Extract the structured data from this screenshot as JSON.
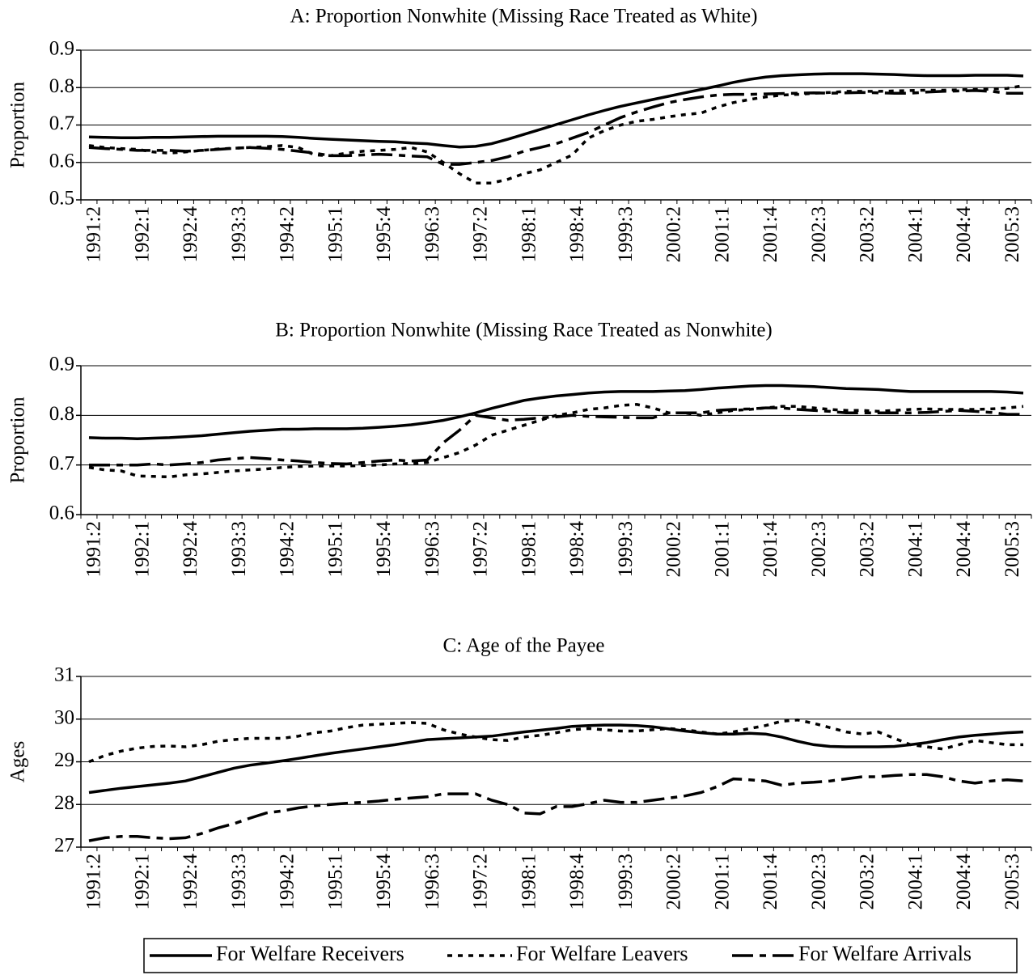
{
  "chart_data": [
    {
      "type": "line",
      "title": "A: Proportion Nonwhite (Missing Race Treated as White)",
      "y_label": "Proportion",
      "categories": [
        "1991:2",
        null,
        null,
        "1992:1",
        null,
        null,
        "1992:4",
        null,
        null,
        "1993:3",
        null,
        null,
        "1994:2",
        null,
        null,
        "1995:1",
        null,
        null,
        "1995:4",
        null,
        null,
        "1996:3",
        null,
        null,
        "1997:2",
        null,
        null,
        "1998:1",
        null,
        null,
        "1998:4",
        null,
        null,
        "1999:3",
        null,
        null,
        "2000:2",
        null,
        null,
        "2001:1",
        null,
        null,
        "2001:4",
        null,
        null,
        "2002:3",
        null,
        null,
        "2003:2",
        null,
        null,
        "2004:1",
        null,
        null,
        "2004:4",
        null,
        null,
        "2005:3",
        null
      ],
      "series": [
        {
          "name": "For Welfare Receivers",
          "color": "#000000",
          "values": [
            0.668,
            0.667,
            0.666,
            0.666,
            0.667,
            0.667,
            0.668,
            0.669,
            0.67,
            0.67,
            0.67,
            0.67,
            0.669,
            0.667,
            0.664,
            0.662,
            0.66,
            0.658,
            0.656,
            0.655,
            0.652,
            0.65,
            0.645,
            0.641,
            0.643,
            0.65,
            0.662,
            0.675,
            0.688,
            0.701,
            0.714,
            0.727,
            0.739,
            0.75,
            0.759,
            0.768,
            0.777,
            0.786,
            0.795,
            0.804,
            0.814,
            0.822,
            0.828,
            0.832,
            0.834,
            0.836,
            0.837,
            0.837,
            0.837,
            0.836,
            0.835,
            0.833,
            0.832,
            0.832,
            0.832,
            0.833,
            0.833,
            0.833,
            0.831
          ]
        },
        {
          "name": "For Welfare Leavers",
          "color": "#000000",
          "values": [
            0.645,
            0.64,
            0.637,
            0.635,
            0.628,
            0.625,
            0.628,
            0.632,
            0.636,
            0.638,
            0.64,
            0.642,
            0.645,
            0.64,
            0.62,
            0.618,
            0.625,
            0.63,
            0.632,
            0.635,
            0.64,
            0.628,
            0.6,
            0.57,
            0.545,
            0.545,
            0.555,
            0.57,
            0.58,
            0.6,
            0.62,
            0.665,
            0.685,
            0.7,
            0.71,
            0.715,
            0.722,
            0.728,
            0.732,
            0.748,
            0.76,
            0.768,
            0.775,
            0.78,
            0.782,
            0.785,
            0.787,
            0.79,
            0.79,
            0.79,
            0.791,
            0.792,
            0.793,
            0.793,
            0.794,
            0.795,
            0.796,
            0.798,
            0.805
          ]
        },
        {
          "name": "For Welfare Arrivals",
          "color": "#000000",
          "values": [
            0.64,
            0.637,
            0.635,
            0.632,
            0.632,
            0.632,
            0.63,
            0.632,
            0.635,
            0.638,
            0.64,
            0.638,
            0.635,
            0.63,
            0.625,
            0.618,
            0.618,
            0.62,
            0.622,
            0.62,
            0.617,
            0.615,
            0.595,
            0.595,
            0.6,
            0.605,
            0.615,
            0.63,
            0.64,
            0.65,
            0.665,
            0.68,
            0.7,
            0.72,
            0.735,
            0.748,
            0.76,
            0.768,
            0.775,
            0.78,
            0.782,
            0.782,
            0.783,
            0.784,
            0.785,
            0.786,
            0.785,
            0.786,
            0.787,
            0.786,
            0.785,
            0.785,
            0.788,
            0.79,
            0.791,
            0.792,
            0.79,
            0.785,
            0.785
          ]
        }
      ],
      "ylim": [
        0.5,
        0.9
      ],
      "yticks": [
        0.5,
        0.6,
        0.7,
        0.8,
        0.9
      ],
      "grid": true
    },
    {
      "type": "line",
      "title": "B: Proportion Nonwhite (Missing Race Treated as Nonwhite)",
      "y_label": "Proportion",
      "categories": [
        "1991:2",
        null,
        null,
        "1992:1",
        null,
        null,
        "1992:4",
        null,
        null,
        "1993:3",
        null,
        null,
        "1994:2",
        null,
        null,
        "1995:1",
        null,
        null,
        "1995:4",
        null,
        null,
        "1996:3",
        null,
        null,
        "1997:2",
        null,
        null,
        "1998:1",
        null,
        null,
        "1998:4",
        null,
        null,
        "1999:3",
        null,
        null,
        "2000:2",
        null,
        null,
        "2001:1",
        null,
        null,
        "2001:4",
        null,
        null,
        "2002:3",
        null,
        null,
        "2003:2",
        null,
        null,
        "2004:1",
        null,
        null,
        "2004:4",
        null,
        null,
        "2005:3",
        null
      ],
      "series": [
        {
          "name": "For Welfare Receivers",
          "color": "#000000",
          "values": [
            0.755,
            0.754,
            0.754,
            0.753,
            0.754,
            0.755,
            0.757,
            0.759,
            0.762,
            0.765,
            0.768,
            0.77,
            0.772,
            0.772,
            0.773,
            0.773,
            0.773,
            0.774,
            0.776,
            0.778,
            0.781,
            0.785,
            0.79,
            0.797,
            0.805,
            0.814,
            0.822,
            0.83,
            0.835,
            0.839,
            0.842,
            0.845,
            0.847,
            0.848,
            0.848,
            0.848,
            0.849,
            0.85,
            0.852,
            0.855,
            0.857,
            0.859,
            0.86,
            0.86,
            0.859,
            0.858,
            0.856,
            0.854,
            0.853,
            0.852,
            0.85,
            0.848,
            0.848,
            0.848,
            0.848,
            0.848,
            0.848,
            0.847,
            0.845
          ]
        },
        {
          "name": "For Welfare Leavers",
          "color": "#000000",
          "values": [
            0.695,
            0.69,
            0.688,
            0.678,
            0.677,
            0.676,
            0.68,
            0.682,
            0.685,
            0.688,
            0.69,
            0.692,
            0.695,
            0.697,
            0.698,
            0.698,
            0.698,
            0.699,
            0.7,
            0.702,
            0.703,
            0.705,
            0.715,
            0.725,
            0.74,
            0.76,
            0.77,
            0.78,
            0.79,
            0.8,
            0.805,
            0.812,
            0.815,
            0.82,
            0.822,
            0.815,
            0.805,
            0.805,
            0.8,
            0.805,
            0.81,
            0.812,
            0.815,
            0.818,
            0.818,
            0.815,
            0.812,
            0.81,
            0.81,
            0.808,
            0.81,
            0.812,
            0.813,
            0.812,
            0.812,
            0.812,
            0.813,
            0.815,
            0.818
          ]
        },
        {
          "name": "For Welfare Arrivals",
          "color": "#000000",
          "values": [
            0.7,
            0.7,
            0.7,
            0.7,
            0.702,
            0.7,
            0.702,
            0.705,
            0.71,
            0.713,
            0.715,
            0.713,
            0.71,
            0.708,
            0.705,
            0.703,
            0.702,
            0.705,
            0.708,
            0.71,
            0.708,
            0.71,
            0.745,
            0.77,
            0.8,
            0.795,
            0.79,
            0.792,
            0.795,
            0.797,
            0.8,
            0.798,
            0.797,
            0.796,
            0.795,
            0.795,
            0.805,
            0.805,
            0.805,
            0.81,
            0.812,
            0.813,
            0.815,
            0.815,
            0.812,
            0.81,
            0.808,
            0.805,
            0.805,
            0.805,
            0.805,
            0.805,
            0.806,
            0.808,
            0.81,
            0.808,
            0.806,
            0.802,
            0.802
          ]
        }
      ],
      "ylim": [
        0.6,
        0.9
      ],
      "yticks": [
        0.6,
        0.7,
        0.8,
        0.9
      ],
      "grid": true
    },
    {
      "type": "line",
      "title": "C: Age of the Payee",
      "y_label": "Ages",
      "categories": [
        "1991:2",
        null,
        null,
        "1992:1",
        null,
        null,
        "1992:4",
        null,
        null,
        "1993:3",
        null,
        null,
        "1994:2",
        null,
        null,
        "1995:1",
        null,
        null,
        "1995:4",
        null,
        null,
        "1996:3",
        null,
        null,
        "1997:2",
        null,
        null,
        "1998:1",
        null,
        null,
        "1998:4",
        null,
        null,
        "1999:3",
        null,
        null,
        "2000:2",
        null,
        null,
        "2001:1",
        null,
        null,
        "2001:4",
        null,
        null,
        "2002:3",
        null,
        null,
        "2003:2",
        null,
        null,
        "2004:1",
        null,
        null,
        "2004:4",
        null,
        null,
        "2005:3",
        null
      ],
      "series": [
        {
          "name": "For Welfare Receivers",
          "color": "#000000",
          "values": [
            28.28,
            28.33,
            28.38,
            28.42,
            28.46,
            28.5,
            28.55,
            28.65,
            28.75,
            28.85,
            28.92,
            28.97,
            29.02,
            29.08,
            29.14,
            29.2,
            29.25,
            29.3,
            29.35,
            29.4,
            29.46,
            29.52,
            29.54,
            29.56,
            29.58,
            29.6,
            29.65,
            29.7,
            29.74,
            29.78,
            29.83,
            29.85,
            29.86,
            29.86,
            29.85,
            29.82,
            29.77,
            29.72,
            29.68,
            29.65,
            29.65,
            29.67,
            29.65,
            29.58,
            29.48,
            29.4,
            29.36,
            29.35,
            29.35,
            29.35,
            29.36,
            29.4,
            29.45,
            29.52,
            29.58,
            29.62,
            29.65,
            29.68,
            29.7
          ]
        },
        {
          "name": "For Welfare Leavers",
          "color": "#000000",
          "values": [
            29.0,
            29.15,
            29.25,
            29.32,
            29.36,
            29.37,
            29.35,
            29.4,
            29.48,
            29.52,
            29.55,
            29.55,
            29.55,
            29.6,
            29.68,
            29.72,
            29.8,
            29.86,
            29.88,
            29.9,
            29.92,
            29.9,
            29.75,
            29.65,
            29.58,
            29.52,
            29.5,
            29.58,
            29.62,
            29.68,
            29.75,
            29.78,
            29.75,
            29.72,
            29.72,
            29.75,
            29.78,
            29.75,
            29.7,
            29.65,
            29.7,
            29.78,
            29.85,
            29.95,
            29.98,
            29.9,
            29.8,
            29.7,
            29.65,
            29.7,
            29.55,
            29.4,
            29.35,
            29.3,
            29.4,
            29.5,
            29.45,
            29.4,
            29.4
          ]
        },
        {
          "name": "For Welfare Arrivals",
          "color": "#000000",
          "values": [
            27.15,
            27.22,
            27.25,
            27.25,
            27.22,
            27.2,
            27.22,
            27.32,
            27.45,
            27.55,
            27.68,
            27.8,
            27.85,
            27.92,
            27.97,
            28.0,
            28.03,
            28.05,
            28.08,
            28.12,
            28.15,
            28.18,
            28.25,
            28.25,
            28.25,
            28.1,
            28.0,
            27.8,
            27.78,
            27.95,
            27.95,
            28.02,
            28.1,
            28.05,
            28.05,
            28.1,
            28.15,
            28.2,
            28.28,
            28.42,
            28.6,
            28.58,
            28.55,
            28.45,
            28.5,
            28.52,
            28.55,
            28.6,
            28.65,
            28.65,
            28.68,
            28.7,
            28.7,
            28.65,
            28.55,
            28.5,
            28.55,
            28.58,
            28.55
          ]
        }
      ],
      "ylim": [
        27,
        31
      ],
      "yticks": [
        27,
        28,
        29,
        30,
        31
      ],
      "grid": true,
      "legend": "bottom"
    }
  ]
}
